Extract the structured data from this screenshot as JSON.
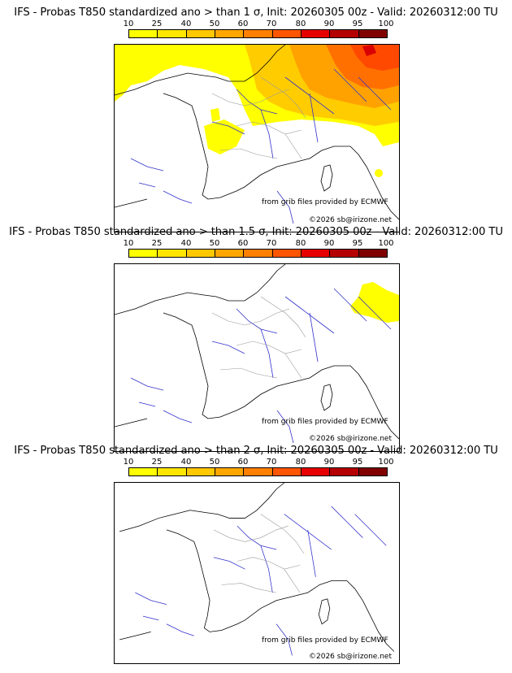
{
  "colorbar": {
    "ticks": [
      "10",
      "25",
      "40",
      "50",
      "60",
      "70",
      "80",
      "90",
      "95",
      "100"
    ],
    "colors": [
      "#ffff00",
      "#ffe600",
      "#ffc800",
      "#ffa600",
      "#ff7f00",
      "#ff5500",
      "#e60000",
      "#b40000",
      "#800000"
    ]
  },
  "panels": [
    {
      "title": "IFS - Probas T850  standardized ano > than 1 σ, Init: 20260305 00z - Valid: 20260312:00 TU",
      "credit": "from grib files provided by ECMWF",
      "copyright": "©2026 sb@irizone.net"
    },
    {
      "title": "IFS - Probas T850  standardized ano > than 1.5 σ, Init: 20260305 00z - Valid: 20260312:00 TU",
      "credit": "from grib files provided by ECMWF",
      "copyright": "©2026 sb@irizone.net"
    },
    {
      "title": "IFS - Probas T850  standardized ano > than 2 σ, Init: 20260305 00z - Valid: 20260312:00 TU",
      "credit": "from grib files provided by ECMWF",
      "copyright": "©2026 sb@irizone.net"
    }
  ]
}
